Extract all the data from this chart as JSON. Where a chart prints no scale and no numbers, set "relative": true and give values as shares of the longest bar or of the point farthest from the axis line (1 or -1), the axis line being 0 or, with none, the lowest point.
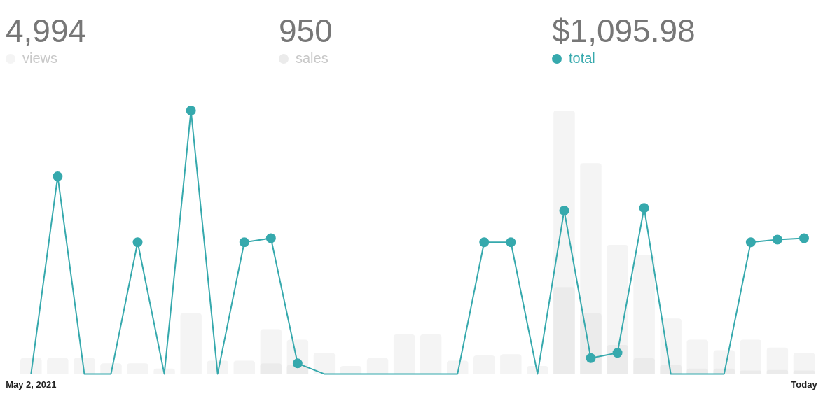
{
  "chart_data": {
    "type": "bar",
    "relative": true,
    "legend": "top",
    "marker": "circle",
    "grid": false,
    "annotations": [
      "4,994",
      "950",
      "$1,095.98"
    ],
    "categories": [
      "May 2, 2021",
      null,
      null,
      null,
      null,
      null,
      null,
      null,
      null,
      null,
      null,
      null,
      null,
      null,
      null,
      null,
      null,
      null,
      null,
      null,
      null,
      null,
      null,
      null,
      null,
      null,
      null,
      null,
      null,
      "Today"
    ],
    "series": [
      {
        "name": "views",
        "color": "#f4f4f4",
        "values": [
          0.06,
          0.06,
          0.06,
          0.04,
          0.04,
          0.02,
          0.23,
          0.05,
          0.05,
          0.17,
          0.13,
          0.08,
          0.03,
          0.06,
          0.15,
          0.15,
          0.05,
          0.07,
          0.075,
          0.03,
          1.0,
          0.8,
          0.49,
          0.45,
          0.21,
          0.13,
          0.09,
          0.13,
          0.1,
          0.08
        ]
      },
      {
        "name": "sales",
        "color": "#ebebeb",
        "values": [
          0,
          0,
          0,
          0,
          0,
          0,
          0,
          0,
          0,
          0.04,
          0.035,
          0,
          0,
          0,
          0,
          0,
          0,
          0,
          0,
          0,
          0.33,
          0.23,
          0.11,
          0.06,
          0.035,
          0.02,
          0.02,
          0.013,
          0.015,
          0.013
        ]
      },
      {
        "name": "total",
        "type": "line",
        "color": "#36a9ad",
        "values": [
          0,
          0.75,
          0,
          0,
          0.5,
          0,
          1.0,
          0,
          0.5,
          0.515,
          0.04,
          0,
          0,
          0,
          0,
          0,
          0,
          0.5,
          0.5,
          0,
          0.62,
          0.06,
          0.08,
          0.63,
          0,
          0,
          0,
          0.5,
          0.51,
          0.515
        ]
      }
    ]
  }
}
